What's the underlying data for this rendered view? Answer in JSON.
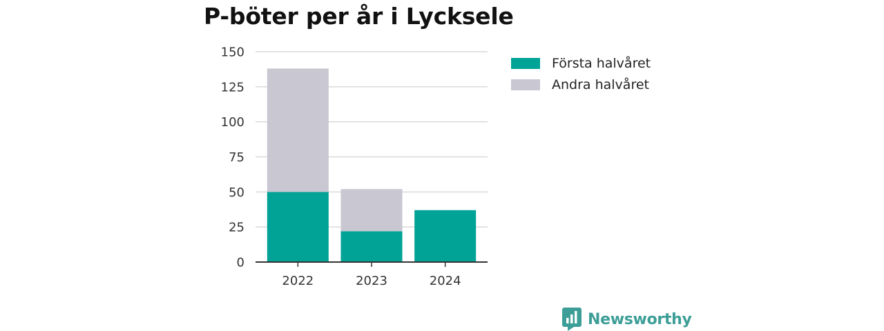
{
  "chart_data": {
    "type": "bar",
    "stacked": true,
    "title": "P-böter per år i Lycksele",
    "categories": [
      "2022",
      "2023",
      "2024"
    ],
    "series": [
      {
        "name": "Första halvåret",
        "color": "#00a396",
        "values": [
          50,
          22,
          37
        ]
      },
      {
        "name": "Andra halvåret",
        "color": "#c8c7d2",
        "values": [
          88,
          30,
          0
        ]
      }
    ],
    "ylim": [
      0,
      150
    ],
    "yticks": [
      0,
      25,
      50,
      75,
      100,
      125,
      150
    ],
    "grid": true,
    "legend_position": "right"
  },
  "brand": {
    "name": "Newsworthy",
    "icon": "newsworthy-logo-icon",
    "color": "#3c9e97"
  }
}
